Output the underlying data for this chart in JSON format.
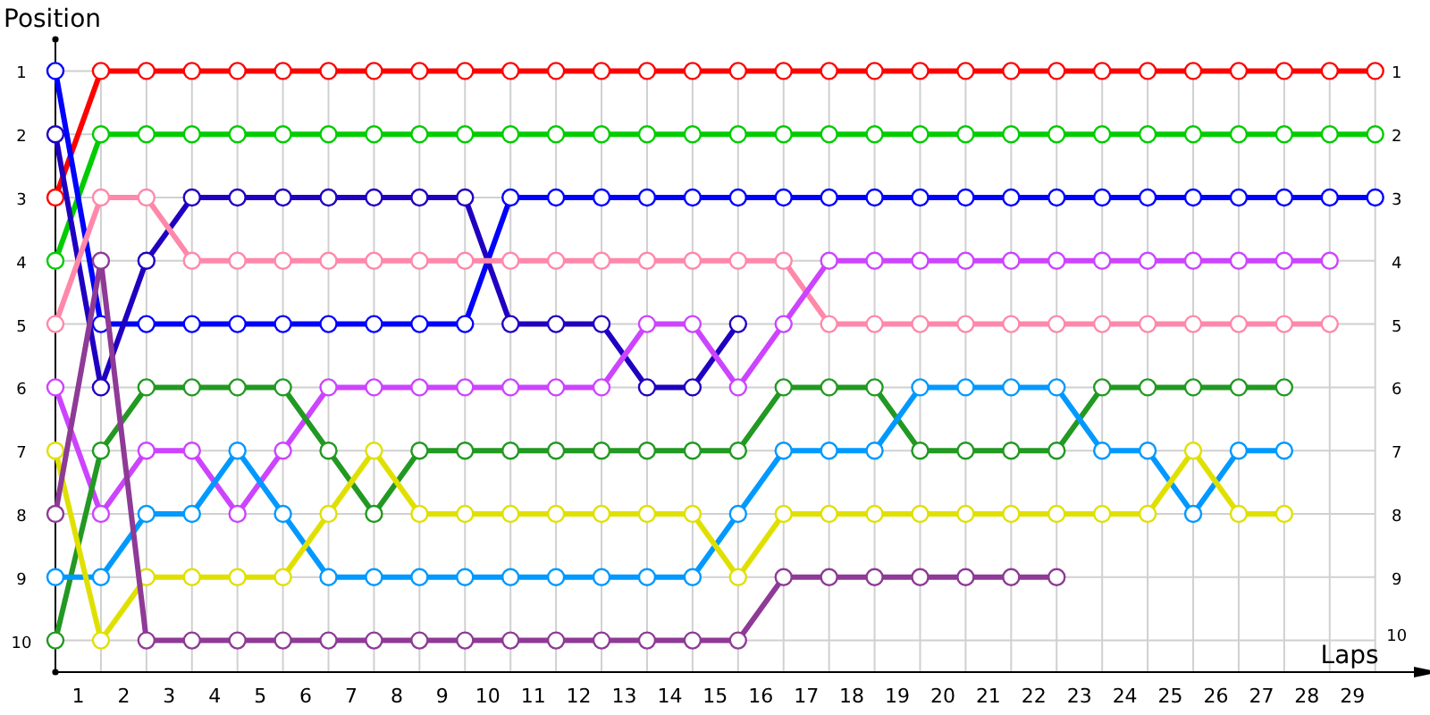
{
  "chart_data": {
    "type": "line",
    "xlabel": "Laps",
    "ylabel": "Position",
    "x": [
      0,
      1,
      2,
      3,
      4,
      5,
      6,
      7,
      8,
      9,
      10,
      11,
      12,
      13,
      14,
      15,
      16,
      17,
      18,
      19,
      20,
      21,
      22,
      23,
      24,
      25,
      26,
      27,
      28,
      29
    ],
    "xlim": [
      0,
      30.4
    ],
    "ylim": [
      10.5,
      0.5
    ],
    "y2lim": [
      10,
      1
    ],
    "xticks": [
      {
        "value": 0,
        "label": null
      },
      {
        "value": 0.5,
        "label": "1"
      },
      {
        "value": 1,
        "label": null
      },
      {
        "value": 1.5,
        "label": "2"
      },
      {
        "value": 2,
        "label": null
      },
      {
        "value": 2.5,
        "label": "3"
      },
      {
        "value": 3,
        "label": null
      },
      {
        "value": 3.5,
        "label": "4"
      },
      {
        "value": 4,
        "label": null
      },
      {
        "value": 4.5,
        "label": "5"
      },
      {
        "value": 5,
        "label": null
      },
      {
        "value": 5.5,
        "label": "6"
      },
      {
        "value": 6,
        "label": null
      },
      {
        "value": 6.5,
        "label": "7"
      },
      {
        "value": 7,
        "label": null
      },
      {
        "value": 7.5,
        "label": "8"
      },
      {
        "value": 8,
        "label": null
      },
      {
        "value": 8.5,
        "label": "9"
      },
      {
        "value": 9,
        "label": null
      },
      {
        "value": 9.5,
        "label": "10"
      },
      {
        "value": 10,
        "label": null
      },
      {
        "value": 10.5,
        "label": "11"
      },
      {
        "value": 11,
        "label": null
      },
      {
        "value": 11.5,
        "label": "12"
      },
      {
        "value": 12,
        "label": null
      },
      {
        "value": 12.5,
        "label": "13"
      },
      {
        "value": 13,
        "label": null
      },
      {
        "value": 13.5,
        "label": "14"
      },
      {
        "value": 14,
        "label": null
      },
      {
        "value": 14.5,
        "label": "15"
      },
      {
        "value": 15,
        "label": null
      },
      {
        "value": 15.5,
        "label": "16"
      },
      {
        "value": 16,
        "label": null
      },
      {
        "value": 16.5,
        "label": "17"
      },
      {
        "value": 17,
        "label": null
      },
      {
        "value": 17.5,
        "label": "18"
      },
      {
        "value": 18,
        "label": null
      },
      {
        "value": 18.5,
        "label": "19"
      },
      {
        "value": 19,
        "label": null
      },
      {
        "value": 19.5,
        "label": "20"
      },
      {
        "value": 20,
        "label": null
      },
      {
        "value": 20.5,
        "label": "21"
      },
      {
        "value": 21,
        "label": null
      },
      {
        "value": 21.5,
        "label": "22"
      },
      {
        "value": 22,
        "label": null
      },
      {
        "value": 22.5,
        "label": "23"
      },
      {
        "value": 23,
        "label": null
      },
      {
        "value": 23.5,
        "label": "24"
      },
      {
        "value": 24,
        "label": null
      },
      {
        "value": 24.5,
        "label": "25"
      },
      {
        "value": 25,
        "label": null
      },
      {
        "value": 25.5,
        "label": "26"
      },
      {
        "value": 26,
        "label": null
      },
      {
        "value": 26.5,
        "label": "27"
      },
      {
        "value": 27,
        "label": null
      },
      {
        "value": 27.5,
        "label": "28"
      },
      {
        "value": 28,
        "label": null
      },
      {
        "value": 28.5,
        "label": "29"
      },
      {
        "value": 29,
        "label": null
      }
    ],
    "yticks": [
      1,
      2,
      3,
      4,
      5,
      6,
      7,
      8,
      9,
      10
    ],
    "y2ticks": [
      1,
      2,
      3,
      4,
      5,
      6,
      7,
      8,
      9,
      10
    ],
    "grid": true,
    "marker": "circle",
    "line_style": "solid",
    "series": [
      {
        "color": "#ff0000",
        "values": [
          3,
          1,
          1,
          1,
          1,
          1,
          1,
          1,
          1,
          1,
          1,
          1,
          1,
          1,
          1,
          1,
          1,
          1,
          1,
          1,
          1,
          1,
          1,
          1,
          1,
          1,
          1,
          1,
          1,
          1
        ]
      },
      {
        "color": "#00cc00",
        "values": [
          4,
          2,
          2,
          2,
          2,
          2,
          2,
          2,
          2,
          2,
          2,
          2,
          2,
          2,
          2,
          2,
          2,
          2,
          2,
          2,
          2,
          2,
          2,
          2,
          2,
          2,
          2,
          2,
          2,
          2
        ]
      },
      {
        "color": "#0000ff",
        "values": [
          1,
          5,
          5,
          5,
          5,
          5,
          5,
          5,
          5,
          5,
          3,
          3,
          3,
          3,
          3,
          3,
          3,
          3,
          3,
          3,
          3,
          3,
          3,
          3,
          3,
          3,
          3,
          3,
          3,
          3
        ]
      },
      {
        "color": "#2000c0",
        "values": [
          2,
          6,
          4,
          3,
          3,
          3,
          3,
          3,
          3,
          3,
          5,
          5,
          5,
          6,
          6,
          5,
          null,
          null,
          null,
          null,
          null,
          null,
          null,
          null,
          null,
          null,
          null,
          null,
          null,
          null
        ]
      },
      {
        "color": "#ff88aa",
        "values": [
          5,
          3,
          3,
          4,
          4,
          4,
          4,
          4,
          4,
          4,
          4,
          4,
          4,
          4,
          4,
          4,
          4,
          5,
          5,
          5,
          5,
          5,
          5,
          5,
          5,
          5,
          5,
          5,
          5,
          null
        ]
      },
      {
        "color": "#cc44ff",
        "values": [
          6,
          8,
          7,
          7,
          8,
          7,
          6,
          6,
          6,
          6,
          6,
          6,
          6,
          5,
          5,
          6,
          5,
          4,
          4,
          4,
          4,
          4,
          4,
          4,
          4,
          4,
          4,
          4,
          4,
          null
        ]
      },
      {
        "color": "#229922",
        "values": [
          10,
          7,
          6,
          6,
          6,
          6,
          7,
          8,
          7,
          7,
          7,
          7,
          7,
          7,
          7,
          7,
          6,
          6,
          6,
          7,
          7,
          7,
          7,
          6,
          6,
          6,
          6,
          6,
          null,
          null
        ]
      },
      {
        "color": "#0099ff",
        "values": [
          9,
          9,
          8,
          8,
          7,
          8,
          9,
          9,
          9,
          9,
          9,
          9,
          9,
          9,
          9,
          8,
          7,
          7,
          7,
          6,
          6,
          6,
          6,
          7,
          7,
          8,
          7,
          7,
          null,
          null
        ]
      },
      {
        "color": "#e0e000",
        "values": [
          7,
          10,
          9,
          9,
          9,
          9,
          8,
          7,
          8,
          8,
          8,
          8,
          8,
          8,
          8,
          9,
          8,
          8,
          8,
          8,
          8,
          8,
          8,
          8,
          8,
          7,
          8,
          8,
          null,
          null
        ]
      },
      {
        "color": "#8e3a96",
        "values": [
          8,
          4,
          10,
          10,
          10,
          10,
          10,
          10,
          10,
          10,
          10,
          10,
          10,
          10,
          10,
          10,
          9,
          9,
          9,
          9,
          9,
          9,
          9,
          null,
          null,
          null,
          null,
          null,
          null,
          null
        ]
      }
    ]
  }
}
